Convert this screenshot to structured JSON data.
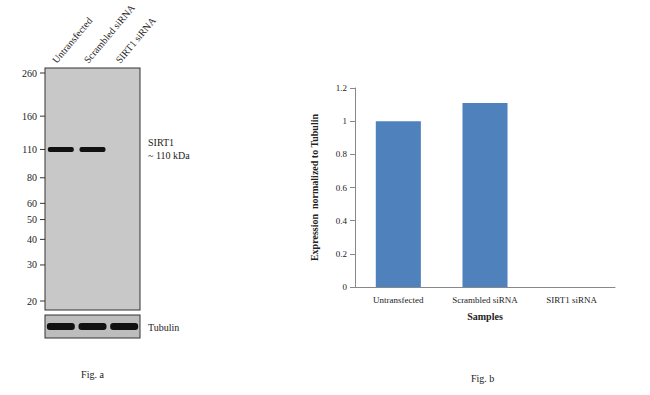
{
  "blot": {
    "lanes": [
      "Untransfected",
      "Scrambled siRNA",
      "SIRT1 siRNA"
    ],
    "markers": [
      260,
      160,
      110,
      80,
      60,
      50,
      40,
      30,
      20
    ],
    "target": {
      "name": "SIRT1",
      "size": {
        "value": 110,
        "label": "~ 110 kDa"
      },
      "present": [
        true,
        true,
        false
      ]
    },
    "control": {
      "name": "Tubulin",
      "present": [
        true,
        true,
        true
      ]
    },
    "caption": "Fig. a"
  },
  "chart_data": {
    "type": "bar",
    "caption": "Fig. b",
    "categories": [
      "Untransfected",
      "Scrambled siRNA",
      "SIRT1 siRNA"
    ],
    "values": [
      1.0,
      1.11,
      0
    ],
    "color": "#4f81bd",
    "x_label": "Samples",
    "y_label": "Expression  normalized to Tubulin",
    "ylim": [
      0,
      1.2
    ],
    "yticks": [
      0,
      0.2,
      0.4,
      0.6,
      0.8,
      1,
      1.2
    ],
    "grid": false
  }
}
